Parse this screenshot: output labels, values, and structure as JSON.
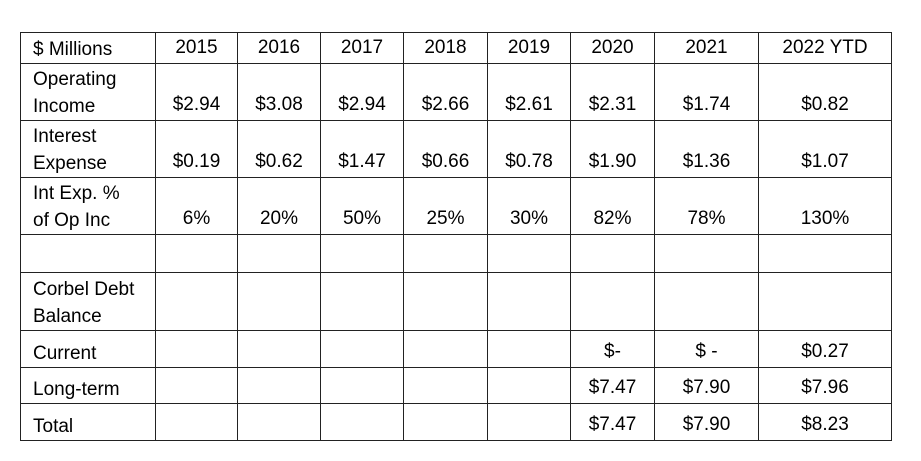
{
  "table": {
    "header": {
      "label": "$ Millions",
      "years": [
        "2015",
        "2016",
        "2017",
        "2018",
        "2019",
        "2020",
        "2021",
        "2022 YTD"
      ]
    },
    "rows": [
      {
        "label_lines": [
          "Operating",
          "Income"
        ],
        "values": [
          "$2.94",
          "$3.08",
          "$2.94",
          "$2.66",
          "$2.61",
          "$2.31",
          "$1.74",
          "$0.82"
        ]
      },
      {
        "label_lines": [
          "Interest",
          "Expense"
        ],
        "values": [
          "$0.19",
          "$0.62",
          "$1.47",
          "$0.66",
          "$0.78",
          "$1.90",
          "$1.36",
          "$1.07"
        ]
      },
      {
        "label_lines": [
          "Int Exp. %",
          "of Op Inc"
        ],
        "values": [
          "6%",
          "20%",
          "50%",
          "25%",
          "30%",
          "82%",
          "78%",
          "130%"
        ]
      },
      {
        "label_lines": [
          ""
        ],
        "values": [
          "",
          "",
          "",
          "",
          "",
          "",
          "",
          ""
        ]
      },
      {
        "label_lines": [
          "Corbel Debt",
          "Balance"
        ],
        "values": [
          "",
          "",
          "",
          "",
          "",
          "",
          "",
          ""
        ]
      },
      {
        "label_lines": [
          "Current"
        ],
        "values": [
          "",
          "",
          "",
          "",
          "",
          "$-",
          "$ -",
          "$0.27"
        ]
      },
      {
        "label_lines": [
          "Long-term"
        ],
        "values": [
          "",
          "",
          "",
          "",
          "",
          "$7.47",
          "$7.90",
          "$7.96"
        ]
      },
      {
        "label_lines": [
          "Total"
        ],
        "values": [
          "",
          "",
          "",
          "",
          "",
          "$7.47",
          "$7.90",
          "$8.23"
        ]
      }
    ]
  }
}
